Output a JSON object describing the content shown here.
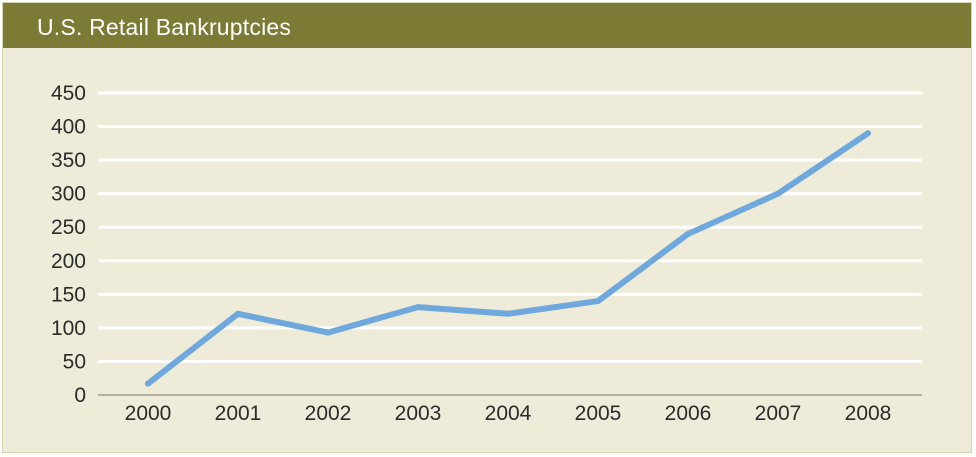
{
  "chart_data": {
    "type": "line",
    "title": "U.S. Retail Bankruptcies",
    "xlabel": "",
    "ylabel": "",
    "categories": [
      "2000",
      "2001",
      "2002",
      "2003",
      "2004",
      "2005",
      "2006",
      "2007",
      "2008"
    ],
    "series": [
      {
        "values": [
          17,
          121,
          93,
          131,
          121,
          140,
          240,
          300,
          390
        ]
      }
    ],
    "ylim": [
      0,
      450
    ],
    "yticks": [
      0,
      50,
      100,
      150,
      200,
      250,
      300,
      350,
      400,
      450
    ],
    "grid": true,
    "legend": "none",
    "colors": {
      "title_bar": "#7b7b36",
      "background": "#eeecd9",
      "gridline": "#ffffff",
      "line": "#6fa8dc",
      "text": "#2b2b2b"
    }
  }
}
